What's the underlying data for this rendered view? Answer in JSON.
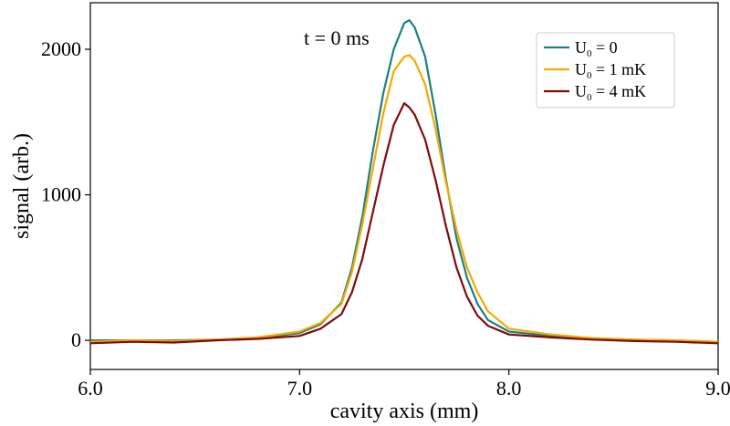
{
  "chart_data": {
    "type": "line",
    "title": "",
    "xlabel": "cavity axis (mm)",
    "ylabel": "signal (arb.)",
    "xlim": [
      6.0,
      9.0
    ],
    "ylim": [
      -200,
      2320
    ],
    "xticks": [
      6.0,
      7.0,
      8.0,
      9.0
    ],
    "xtick_labels": [
      "6.0",
      "7.0",
      "8.0",
      "9.0"
    ],
    "yticks": [
      0,
      1000,
      2000
    ],
    "ytick_labels": [
      "0",
      "1000",
      "2000"
    ],
    "grid": false,
    "legend_position": "top-right",
    "annotation": "t = 0 ms",
    "series": [
      {
        "name": "U0 = 0",
        "legend_main": "U",
        "legend_sub": "0",
        "legend_rest": " = 0",
        "color": "#1a8080",
        "x": [
          6.0,
          6.2,
          6.4,
          6.6,
          6.8,
          7.0,
          7.1,
          7.2,
          7.25,
          7.3,
          7.35,
          7.4,
          7.45,
          7.5,
          7.525,
          7.55,
          7.6,
          7.65,
          7.7,
          7.75,
          7.8,
          7.85,
          7.9,
          8.0,
          8.2,
          8.4,
          8.6,
          8.8,
          9.0
        ],
        "y": [
          0,
          0,
          0,
          5,
          15,
          50,
          110,
          260,
          500,
          850,
          1300,
          1700,
          2000,
          2180,
          2200,
          2150,
          1950,
          1550,
          1100,
          700,
          430,
          250,
          140,
          60,
          30,
          15,
          5,
          0,
          -10
        ]
      },
      {
        "name": "U0 = 1 mK",
        "legend_main": "U",
        "legend_sub": "0",
        "legend_rest": " = 1 mK",
        "color": "#f5a800",
        "x": [
          6.0,
          6.2,
          6.4,
          6.6,
          6.8,
          7.0,
          7.1,
          7.2,
          7.25,
          7.3,
          7.35,
          7.4,
          7.45,
          7.5,
          7.525,
          7.55,
          7.6,
          7.65,
          7.7,
          7.75,
          7.8,
          7.85,
          7.9,
          8.0,
          8.2,
          8.4,
          8.6,
          8.8,
          9.0
        ],
        "y": [
          -10,
          0,
          -5,
          5,
          20,
          60,
          120,
          250,
          470,
          800,
          1180,
          1560,
          1850,
          1950,
          1960,
          1920,
          1760,
          1450,
          1080,
          760,
          500,
          330,
          200,
          80,
          40,
          15,
          5,
          0,
          -10
        ]
      },
      {
        "name": "U0 = 4 mK",
        "legend_main": "U",
        "legend_sub": "0",
        "legend_rest": " = 4 mK",
        "color": "#7f0a0a",
        "x": [
          6.0,
          6.2,
          6.4,
          6.6,
          6.8,
          7.0,
          7.1,
          7.2,
          7.25,
          7.3,
          7.35,
          7.4,
          7.45,
          7.5,
          7.525,
          7.55,
          7.6,
          7.65,
          7.7,
          7.75,
          7.8,
          7.85,
          7.9,
          8.0,
          8.2,
          8.4,
          8.6,
          8.8,
          9.0
        ],
        "y": [
          -20,
          -10,
          -15,
          0,
          10,
          30,
          80,
          180,
          330,
          560,
          880,
          1200,
          1480,
          1630,
          1600,
          1550,
          1380,
          1100,
          780,
          500,
          300,
          170,
          100,
          40,
          20,
          5,
          -5,
          -10,
          -20
        ]
      }
    ]
  }
}
